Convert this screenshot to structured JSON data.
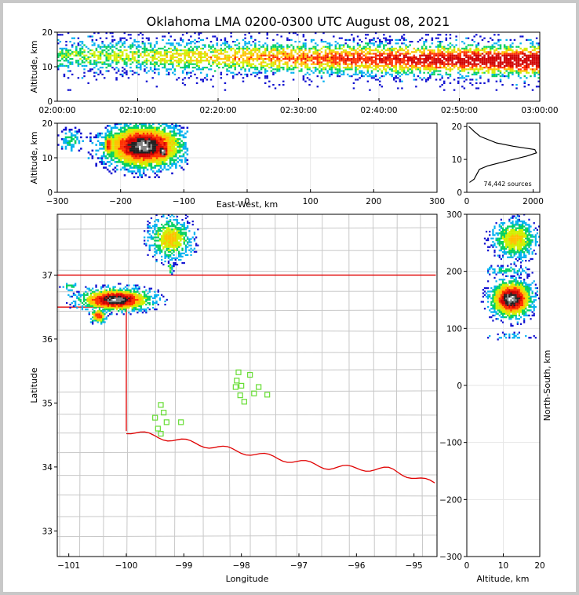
{
  "chart_data": [
    {
      "type": "heatmap",
      "panel": "time-altitude",
      "title": "Oklahoma LMA 0200-0300 UTC August 08, 2021",
      "ylabel": "Altitude, km",
      "xlabel": "",
      "xticks": [
        "02:00:00",
        "02:10:00",
        "02:20:00",
        "02:30:00",
        "02:40:00",
        "02:50:00",
        "03:00:00"
      ],
      "yticks": [
        "0",
        "10",
        "20"
      ],
      "xlim": [
        0,
        60
      ],
      "ylim": [
        0,
        20
      ]
    },
    {
      "type": "heatmap",
      "panel": "east-west-altitude",
      "xlabel": "East-West, km",
      "ylabel": "Altitude, km",
      "xticks": [
        "−300",
        "−200",
        "−100",
        "0",
        "100",
        "200",
        "300"
      ],
      "yticks": [
        "0",
        "10",
        "20"
      ],
      "xlim": [
        -300,
        300
      ],
      "ylim": [
        0,
        20
      ]
    },
    {
      "type": "line",
      "panel": "altitude-histogram",
      "xticks": [
        "0",
        "2000"
      ],
      "yticks": [
        "0",
        "10",
        "20"
      ],
      "xlim": [
        0,
        2200
      ],
      "ylim": [
        0,
        21
      ],
      "annotation": "74,442 sources",
      "points": [
        [
          80,
          3
        ],
        [
          220,
          4
        ],
        [
          300,
          5.5
        ],
        [
          380,
          7
        ],
        [
          620,
          8
        ],
        [
          1000,
          9
        ],
        [
          1400,
          10
        ],
        [
          1800,
          11
        ],
        [
          2100,
          12
        ],
        [
          2050,
          13
        ],
        [
          1400,
          14
        ],
        [
          900,
          15
        ],
        [
          400,
          17
        ],
        [
          220,
          18.5
        ],
        [
          120,
          19.5
        ],
        [
          60,
          20
        ]
      ]
    },
    {
      "type": "heatmap",
      "panel": "plan-view",
      "xlabel": "Longitude",
      "ylabel": "Latitude",
      "xticks": [
        "−101",
        "−100",
        "−99",
        "−98",
        "−97",
        "−96",
        "−95"
      ],
      "yticks": [
        "33",
        "34",
        "35",
        "36",
        "37"
      ],
      "xlim": [
        -101.2,
        -94.6
      ],
      "ylim": [
        32.6,
        37.95
      ],
      "stations": [
        [
          -98.05,
          35.48
        ],
        [
          -98.08,
          35.35
        ],
        [
          -98.1,
          35.25
        ],
        [
          -98.0,
          35.27
        ],
        [
          -97.85,
          35.44
        ],
        [
          -97.78,
          35.15
        ],
        [
          -97.7,
          35.25
        ],
        [
          -97.55,
          35.13
        ],
        [
          -98.02,
          35.12
        ],
        [
          -97.95,
          35.02
        ],
        [
          -99.4,
          34.97
        ],
        [
          -99.35,
          34.85
        ],
        [
          -99.3,
          34.7
        ],
        [
          -99.5,
          34.77
        ],
        [
          -99.45,
          34.6
        ],
        [
          -99.4,
          34.52
        ],
        [
          -99.05,
          34.7
        ]
      ]
    },
    {
      "type": "heatmap",
      "panel": "altitude-north-south",
      "xlabel": "Altitude, km",
      "ylabel": "North-South, km",
      "xticks": [
        "0",
        "10",
        "20"
      ],
      "yticks": [
        "−300",
        "−200",
        "−100",
        "0",
        "100",
        "200",
        "300"
      ],
      "xlim": [
        0,
        20
      ],
      "ylim": [
        -300,
        300
      ]
    }
  ]
}
